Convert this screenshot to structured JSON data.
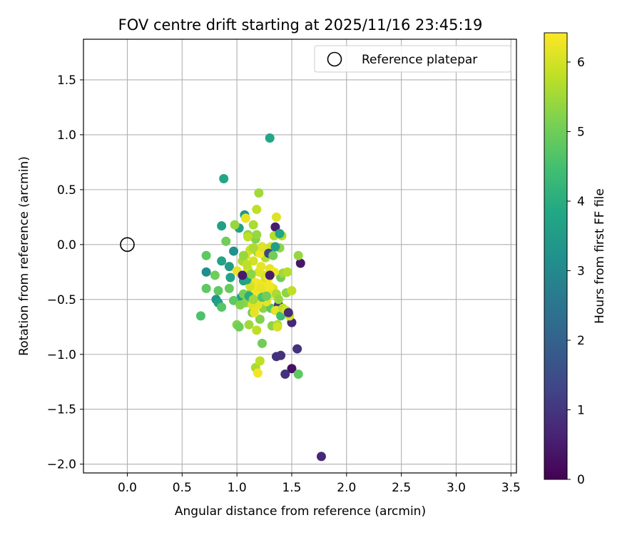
{
  "chart_data": {
    "type": "scatter",
    "title": "FOV centre drift starting at 2025/11/16 23:45:19",
    "xlabel": "Angular distance from reference (arcmin)",
    "ylabel": "Rotation from reference (arcmin)",
    "xlim": [
      -0.4,
      3.55
    ],
    "ylim": [
      -2.08,
      1.87
    ],
    "xticks": [
      0.0,
      0.5,
      1.0,
      1.5,
      2.0,
      2.5,
      3.0,
      3.5
    ],
    "xtick_labels": [
      "0.0",
      "0.5",
      "1.0",
      "1.5",
      "2.0",
      "2.5",
      "3.0",
      "3.5"
    ],
    "yticks": [
      -2.0,
      -1.5,
      -1.0,
      -0.5,
      0.0,
      0.5,
      1.0,
      1.5
    ],
    "ytick_labels": [
      "−2.0",
      "−1.5",
      "−1.0",
      "−0.5",
      "0.0",
      "0.5",
      "1.0",
      "1.5"
    ],
    "grid": true,
    "legend": {
      "position": "top-right",
      "entries": [
        "Reference platepar"
      ]
    },
    "reference_point": {
      "label": "Reference platepar",
      "x": 0.0,
      "y": 0.0
    },
    "colorbar": {
      "label": "Hours from first FF file",
      "min": 0,
      "max": 6.42,
      "ticks": [
        0,
        1,
        2,
        3,
        4,
        5,
        6
      ],
      "tick_labels": [
        "0",
        "1",
        "2",
        "3",
        "4",
        "5",
        "6"
      ],
      "colormap": "viridis"
    },
    "points": [
      {
        "x": 1.77,
        "y": -1.93,
        "h": 0.7
      },
      {
        "x": 1.5,
        "y": -1.13,
        "h": 0.3
      },
      {
        "x": 1.44,
        "y": -1.18,
        "h": 0.9
      },
      {
        "x": 1.36,
        "y": -1.02,
        "h": 0.9
      },
      {
        "x": 1.4,
        "y": -1.01,
        "h": 0.9
      },
      {
        "x": 1.55,
        "y": -0.95,
        "h": 0.9
      },
      {
        "x": 1.5,
        "y": -0.71,
        "h": 0.7
      },
      {
        "x": 1.58,
        "y": -0.17,
        "h": 0.4
      },
      {
        "x": 1.35,
        "y": 0.16,
        "h": 0.5
      },
      {
        "x": 1.3,
        "y": 0.97,
        "h": 3.8
      },
      {
        "x": 0.88,
        "y": 0.6,
        "h": 3.8
      },
      {
        "x": 0.86,
        "y": 0.17,
        "h": 3.6
      },
      {
        "x": 0.93,
        "y": -0.2,
        "h": 3.5
      },
      {
        "x": 0.72,
        "y": -0.25,
        "h": 3.1
      },
      {
        "x": 0.81,
        "y": -0.5,
        "h": 3.3
      },
      {
        "x": 0.83,
        "y": -0.53,
        "h": 3.6
      },
      {
        "x": 0.86,
        "y": -0.15,
        "h": 3.7
      },
      {
        "x": 0.94,
        "y": -0.3,
        "h": 3.7
      },
      {
        "x": 0.97,
        "y": -0.06,
        "h": 3.2
      },
      {
        "x": 1.07,
        "y": 0.27,
        "h": 3.4
      },
      {
        "x": 1.02,
        "y": 0.15,
        "h": 3.6
      },
      {
        "x": 1.04,
        "y": -0.48,
        "h": 3.6
      },
      {
        "x": 1.06,
        "y": -0.33,
        "h": 3.6
      },
      {
        "x": 0.67,
        "y": -0.65,
        "h": 4.6
      },
      {
        "x": 0.72,
        "y": -0.1,
        "h": 4.8
      },
      {
        "x": 0.72,
        "y": -0.4,
        "h": 4.8
      },
      {
        "x": 0.8,
        "y": -0.28,
        "h": 5.0
      },
      {
        "x": 0.83,
        "y": -0.42,
        "h": 4.8
      },
      {
        "x": 0.86,
        "y": -0.57,
        "h": 4.7
      },
      {
        "x": 0.9,
        "y": 0.03,
        "h": 5.0
      },
      {
        "x": 0.93,
        "y": -0.4,
        "h": 4.9
      },
      {
        "x": 0.97,
        "y": -0.51,
        "h": 4.8
      },
      {
        "x": 0.98,
        "y": 0.18,
        "h": 5.4
      },
      {
        "x": 1.0,
        "y": -0.73,
        "h": 5.2
      },
      {
        "x": 1.02,
        "y": -0.75,
        "h": 5.0
      },
      {
        "x": 1.05,
        "y": -0.15,
        "h": 5.6
      },
      {
        "x": 1.08,
        "y": -0.53,
        "h": 5.3
      },
      {
        "x": 1.1,
        "y": 0.09,
        "h": 5.3
      },
      {
        "x": 1.11,
        "y": -0.73,
        "h": 5.5
      },
      {
        "x": 1.12,
        "y": -0.45,
        "h": 4.9
      },
      {
        "x": 1.14,
        "y": -0.62,
        "h": 5.0
      },
      {
        "x": 1.15,
        "y": 0.18,
        "h": 5.6
      },
      {
        "x": 1.17,
        "y": -1.12,
        "h": 5.6
      },
      {
        "x": 1.18,
        "y": -0.78,
        "h": 5.8
      },
      {
        "x": 1.19,
        "y": -1.17,
        "h": 6.3
      },
      {
        "x": 1.2,
        "y": 0.47,
        "h": 5.5
      },
      {
        "x": 1.21,
        "y": -0.68,
        "h": 5.2
      },
      {
        "x": 1.21,
        "y": -1.06,
        "h": 5.8
      },
      {
        "x": 1.23,
        "y": -0.9,
        "h": 5.0
      },
      {
        "x": 1.18,
        "y": 0.32,
        "h": 5.8
      },
      {
        "x": 1.17,
        "y": 0.05,
        "h": 5.2
      },
      {
        "x": 1.19,
        "y": -0.07,
        "h": 5.4
      },
      {
        "x": 1.24,
        "y": -0.58,
        "h": 5.3
      },
      {
        "x": 1.25,
        "y": -0.28,
        "h": 6.0
      },
      {
        "x": 1.26,
        "y": -0.12,
        "h": 5.7
      },
      {
        "x": 1.28,
        "y": -0.45,
        "h": 5.5
      },
      {
        "x": 1.3,
        "y": -0.22,
        "h": 6.2
      },
      {
        "x": 1.31,
        "y": -0.58,
        "h": 4.8
      },
      {
        "x": 1.32,
        "y": -0.74,
        "h": 5.3
      },
      {
        "x": 1.33,
        "y": -0.4,
        "h": 6.1
      },
      {
        "x": 1.34,
        "y": 0.08,
        "h": 5.7
      },
      {
        "x": 1.35,
        "y": -0.6,
        "h": 5.9
      },
      {
        "x": 1.36,
        "y": 0.25,
        "h": 6.1
      },
      {
        "x": 1.37,
        "y": -0.73,
        "h": 5.6
      },
      {
        "x": 1.38,
        "y": -0.55,
        "h": 1.0
      },
      {
        "x": 1.39,
        "y": -0.03,
        "h": 5.3
      },
      {
        "x": 1.4,
        "y": -0.3,
        "h": 5.0
      },
      {
        "x": 1.41,
        "y": 0.08,
        "h": 5.7
      },
      {
        "x": 1.42,
        "y": -0.26,
        "h": 5.5
      },
      {
        "x": 1.44,
        "y": -0.6,
        "h": 5.5
      },
      {
        "x": 1.45,
        "y": -0.44,
        "h": 5.3
      },
      {
        "x": 1.46,
        "y": -0.25,
        "h": 5.7
      },
      {
        "x": 1.48,
        "y": -0.65,
        "h": 6.0
      },
      {
        "x": 1.5,
        "y": -0.42,
        "h": 5.8
      },
      {
        "x": 1.56,
        "y": -0.1,
        "h": 5.4
      },
      {
        "x": 1.56,
        "y": -1.18,
        "h": 4.8
      },
      {
        "x": 1.1,
        "y": -0.22,
        "h": 5.9
      },
      {
        "x": 1.13,
        "y": -0.3,
        "h": 6.2
      },
      {
        "x": 1.14,
        "y": -0.38,
        "h": 6.3
      },
      {
        "x": 1.16,
        "y": -0.5,
        "h": 6.2
      },
      {
        "x": 1.18,
        "y": -0.35,
        "h": 6.3
      },
      {
        "x": 1.2,
        "y": -0.25,
        "h": 6.1
      },
      {
        "x": 1.22,
        "y": -0.2,
        "h": 6.2
      },
      {
        "x": 1.24,
        "y": -0.35,
        "h": 6.3
      },
      {
        "x": 1.26,
        "y": -0.3,
        "h": 6.0
      },
      {
        "x": 1.28,
        "y": -0.05,
        "h": 6.2
      },
      {
        "x": 1.3,
        "y": -0.38,
        "h": 6.3
      },
      {
        "x": 1.32,
        "y": -0.45,
        "h": 6.2
      },
      {
        "x": 1.34,
        "y": -0.25,
        "h": 6.3
      },
      {
        "x": 1.15,
        "y": -0.15,
        "h": 6.0
      },
      {
        "x": 1.17,
        "y": -0.42,
        "h": 6.3
      },
      {
        "x": 1.19,
        "y": -0.55,
        "h": 6.2
      },
      {
        "x": 1.21,
        "y": -0.08,
        "h": 6.3
      },
      {
        "x": 1.23,
        "y": -0.02,
        "h": 6.1
      },
      {
        "x": 1.25,
        "y": -0.42,
        "h": 6.3
      },
      {
        "x": 1.27,
        "y": -0.52,
        "h": 6.2
      },
      {
        "x": 1.29,
        "y": -0.3,
        "h": 6.3
      },
      {
        "x": 1.31,
        "y": -0.02,
        "h": 6.0
      },
      {
        "x": 1.12,
        "y": -0.05,
        "h": 5.9
      },
      {
        "x": 1.08,
        "y": -0.1,
        "h": 6.0
      },
      {
        "x": 1.08,
        "y": 0.24,
        "h": 6.2
      },
      {
        "x": 1.1,
        "y": 0.07,
        "h": 5.8
      },
      {
        "x": 1.12,
        "y": -0.38,
        "h": 6.0
      },
      {
        "x": 1.14,
        "y": -0.55,
        "h": 6.1
      },
      {
        "x": 1.16,
        "y": -0.62,
        "h": 6.2
      },
      {
        "x": 1.18,
        "y": -0.48,
        "h": 6.3
      },
      {
        "x": 1.36,
        "y": -0.6,
        "h": 6.2
      },
      {
        "x": 1.37,
        "y": -0.75,
        "h": 6.0
      },
      {
        "x": 1.22,
        "y": -0.4,
        "h": 6.2
      },
      {
        "x": 1.0,
        "y": -0.24,
        "h": 6.2
      },
      {
        "x": 1.03,
        "y": -0.55,
        "h": 5.2
      },
      {
        "x": 1.06,
        "y": -0.45,
        "h": 5.1
      },
      {
        "x": 1.06,
        "y": -0.1,
        "h": 5.4
      },
      {
        "x": 1.09,
        "y": -0.32,
        "h": 3.7
      },
      {
        "x": 1.11,
        "y": -0.47,
        "h": 4.0
      },
      {
        "x": 1.13,
        "y": -0.27,
        "h": 5.3
      },
      {
        "x": 1.15,
        "y": -0.03,
        "h": 5.6
      },
      {
        "x": 1.15,
        "y": -0.5,
        "h": 5.5
      },
      {
        "x": 1.18,
        "y": 0.09,
        "h": 5.4
      },
      {
        "x": 1.23,
        "y": -0.48,
        "h": 4.6
      },
      {
        "x": 1.27,
        "y": -0.47,
        "h": 5.0
      },
      {
        "x": 1.29,
        "y": -0.08,
        "h": 1.3
      },
      {
        "x": 1.3,
        "y": -0.28,
        "h": 0.5
      },
      {
        "x": 1.33,
        "y": -0.1,
        "h": 5.0
      },
      {
        "x": 1.35,
        "y": -0.02,
        "h": 3.6
      },
      {
        "x": 1.39,
        "y": 0.1,
        "h": 3.8
      },
      {
        "x": 1.4,
        "y": -0.65,
        "h": 4.4
      },
      {
        "x": 1.42,
        "y": -0.58,
        "h": 5.8
      },
      {
        "x": 1.45,
        "y": -0.6,
        "h": 6.0
      },
      {
        "x": 1.47,
        "y": -0.62,
        "h": 0.8
      },
      {
        "x": 1.05,
        "y": -0.28,
        "h": 0.5
      },
      {
        "x": 1.09,
        "y": -0.18,
        "h": 5.8
      },
      {
        "x": 1.36,
        "y": -0.45,
        "h": 5.6
      },
      {
        "x": 1.38,
        "y": -0.5,
        "h": 5.4
      }
    ]
  }
}
